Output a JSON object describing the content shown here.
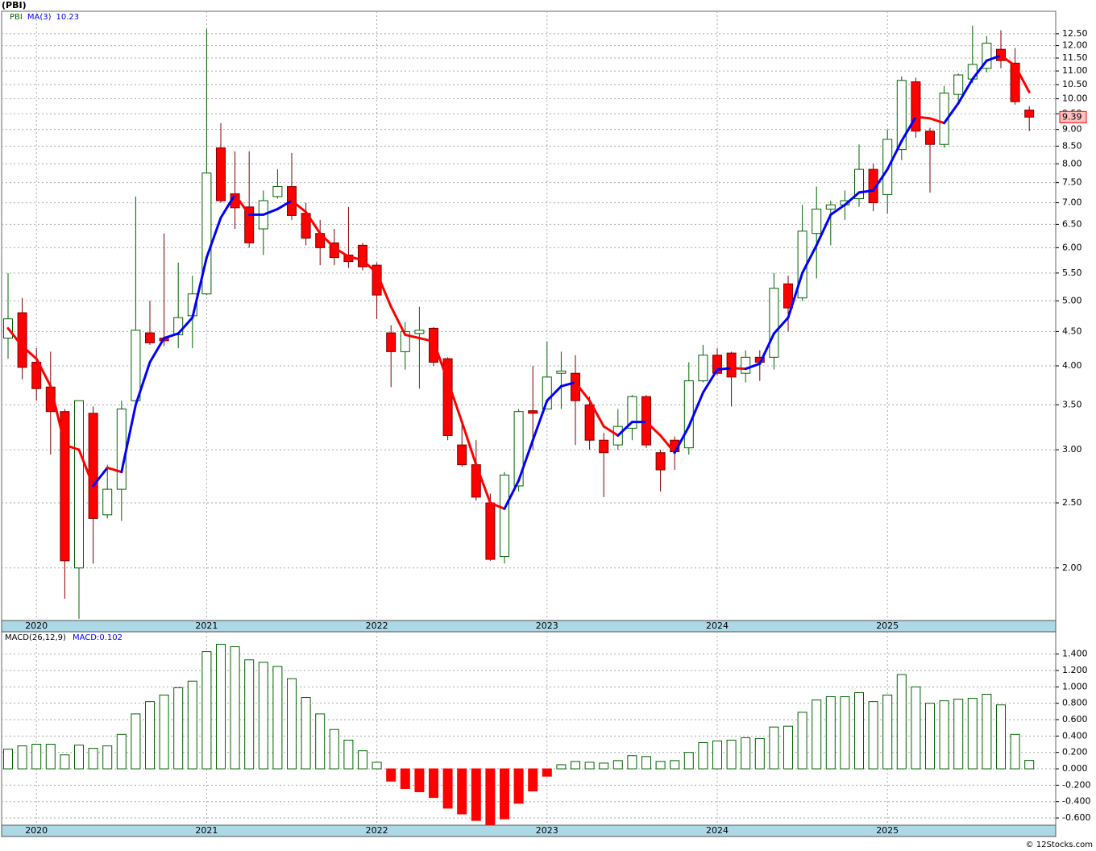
{
  "title": "(PBI)",
  "footer": "© 12Stocks.com",
  "chart_data": [
    {
      "type": "candlestick",
      "log_scale": true,
      "grid": true,
      "ylim": [
        1.67,
        13.5
      ],
      "yticks": [
        {
          "value": 2,
          "label": "2.00"
        },
        {
          "value": 2.5,
          "label": "2.50"
        },
        {
          "value": 3,
          "label": "3.00"
        },
        {
          "value": 3.5,
          "label": "3.50"
        },
        {
          "value": 4,
          "label": "4.00"
        },
        {
          "value": 4.5,
          "label": "4.50"
        },
        {
          "value": 5,
          "label": "5.00"
        },
        {
          "value": 5.5,
          "label": "5.50"
        },
        {
          "value": 6,
          "label": "6.00"
        },
        {
          "value": 6.5,
          "label": "6.50"
        },
        {
          "value": 7,
          "label": "7.00"
        },
        {
          "value": 7.5,
          "label": "7.50"
        },
        {
          "value": 8,
          "label": "8.00"
        },
        {
          "value": 8.5,
          "label": "8.50"
        },
        {
          "value": 9,
          "label": "9.00"
        },
        {
          "value": 9.5,
          "label": "9.50"
        },
        {
          "value": 10,
          "label": "10.00"
        },
        {
          "value": 10.5,
          "label": "10.50"
        },
        {
          "value": 11,
          "label": "11.00"
        },
        {
          "value": 11.5,
          "label": "11.50"
        },
        {
          "value": 12,
          "label": "12.00"
        },
        {
          "value": 12.5,
          "label": "12.50"
        }
      ],
      "xticks": [
        {
          "value": 2,
          "label": "2020"
        },
        {
          "value": 14,
          "label": "2021"
        },
        {
          "value": 26,
          "label": "2022"
        },
        {
          "value": 38,
          "label": "2023"
        },
        {
          "value": 50,
          "label": "2024"
        },
        {
          "value": 62,
          "label": "2025"
        }
      ],
      "series": [
        {
          "name": "PBI",
          "up_color": "#006400",
          "down_color": "#ff0000",
          "open": [
            4.4,
            4.8,
            4.05,
            3.72,
            3.42,
            2.0,
            3.4,
            2.4,
            2.62,
            3.55,
            4.48,
            4.4,
            4.45,
            4.75,
            5.12,
            8.45,
            7.22,
            6.9,
            6.4,
            7.15,
            7.4,
            6.75,
            6.3,
            6.1,
            5.85,
            6.05,
            5.65,
            4.48,
            4.2,
            4.47,
            4.55,
            4.1,
            3.05,
            2.85,
            2.5,
            2.08,
            2.65,
            3.43,
            3.45,
            3.9,
            3.9,
            3.5,
            3.1,
            3.05,
            3.23,
            3.6,
            2.97,
            3.1,
            3.02,
            3.8,
            4.15,
            4.18,
            3.9,
            4.12,
            4.12,
            5.3,
            5.05,
            6.3,
            6.85,
            6.95,
            7.1,
            7.85,
            7.2,
            8.4,
            10.6,
            8.95,
            8.55,
            10.15,
            10.7,
            11.1,
            11.85,
            11.3,
            9.62
          ],
          "high": [
            5.5,
            5.05,
            4.25,
            4.2,
            3.45,
            3.55,
            3.48,
            2.85,
            3.55,
            7.15,
            5.0,
            6.3,
            5.7,
            5.45,
            12.7,
            9.2,
            8.35,
            8.35,
            7.3,
            7.85,
            8.3,
            7.0,
            6.6,
            6.4,
            6.9,
            6.1,
            5.7,
            4.6,
            4.65,
            4.9,
            4.57,
            4.12,
            3.3,
            3.1,
            2.58,
            2.78,
            3.45,
            4.0,
            4.35,
            4.2,
            4.15,
            3.6,
            3.18,
            3.45,
            3.62,
            3.62,
            3.0,
            3.14,
            4.05,
            4.3,
            4.25,
            4.2,
            4.22,
            4.22,
            5.5,
            5.45,
            6.95,
            7.4,
            7.05,
            7.3,
            8.55,
            8.0,
            9.0,
            10.8,
            10.75,
            9.05,
            10.45,
            10.9,
            12.85,
            12.4,
            12.65,
            11.9,
            9.75
          ],
          "low": [
            4.1,
            3.82,
            3.55,
            2.95,
            1.8,
            1.68,
            2.03,
            2.37,
            2.35,
            3.5,
            4.3,
            4.28,
            4.25,
            4.25,
            5.1,
            7.0,
            6.4,
            6.0,
            5.85,
            7.1,
            6.6,
            6.05,
            5.65,
            5.65,
            5.6,
            5.55,
            4.7,
            3.72,
            3.95,
            3.7,
            4.0,
            3.1,
            2.83,
            2.52,
            2.05,
            2.03,
            2.6,
            3.0,
            3.45,
            3.45,
            3.05,
            3.0,
            2.55,
            3.0,
            3.1,
            3.02,
            2.6,
            2.8,
            2.95,
            3.78,
            3.87,
            3.48,
            3.78,
            3.8,
            3.95,
            4.5,
            5.0,
            5.4,
            6.05,
            6.6,
            6.9,
            6.8,
            6.75,
            8.1,
            8.75,
            7.25,
            8.45,
            9.9,
            10.55,
            10.95,
            11.1,
            9.8,
            8.95
          ],
          "close": [
            4.7,
            3.98,
            3.7,
            3.42,
            2.05,
            3.55,
            2.37,
            2.62,
            3.45,
            4.52,
            4.33,
            4.36,
            4.72,
            5.12,
            7.75,
            7.05,
            6.88,
            6.1,
            7.05,
            7.4,
            6.7,
            6.2,
            6.0,
            5.8,
            5.72,
            5.62,
            5.1,
            4.2,
            4.5,
            4.52,
            4.05,
            3.15,
            2.85,
            2.55,
            2.06,
            2.75,
            3.42,
            3.4,
            3.85,
            3.93,
            3.55,
            3.1,
            2.97,
            3.25,
            3.6,
            3.05,
            2.8,
            2.98,
            3.8,
            4.15,
            3.9,
            3.85,
            4.12,
            4.05,
            5.22,
            4.88,
            6.35,
            6.85,
            6.95,
            7.05,
            7.85,
            7.0,
            8.7,
            10.65,
            8.95,
            8.55,
            10.2,
            10.85,
            11.25,
            12.1,
            11.4,
            9.9,
            9.39
          ]
        },
        {
          "name": "MA(3)",
          "up_color": "#0000ff",
          "down_color": "#ff0000",
          "values": [
            4.55,
            4.28,
            4.1,
            3.73,
            3.05,
            3.0,
            2.65,
            2.82,
            2.78,
            3.5,
            4.05,
            4.4,
            4.47,
            4.72,
            5.8,
            6.65,
            7.2,
            6.72,
            6.72,
            6.85,
            7.05,
            6.78,
            6.3,
            6.0,
            5.82,
            5.75,
            5.5,
            4.9,
            4.45,
            4.4,
            4.35,
            3.8,
            3.3,
            2.85,
            2.5,
            2.45,
            2.7,
            3.1,
            3.55,
            3.73,
            3.78,
            3.55,
            3.25,
            3.15,
            3.3,
            3.3,
            3.15,
            2.97,
            3.25,
            3.65,
            3.95,
            3.97,
            3.96,
            4.03,
            4.47,
            4.72,
            5.5,
            6.05,
            6.72,
            6.95,
            7.25,
            7.3,
            7.85,
            8.65,
            9.4,
            9.35,
            9.2,
            9.85,
            10.7,
            11.4,
            11.6,
            11.2,
            10.23
          ]
        }
      ]
    },
    {
      "type": "bar",
      "name": "MACD(26,12,9)",
      "value_prefix": "MACD:",
      "grid": true,
      "up_color": "#006400",
      "down_color": "#ff0000",
      "ylim": [
        -0.688,
        1.672
      ],
      "yticks": [
        {
          "value": -0.6,
          "label": "-0.600"
        },
        {
          "value": -0.4,
          "label": "-0.400"
        },
        {
          "value": -0.2,
          "label": "-0.200"
        },
        {
          "value": 0,
          "label": "0.000"
        },
        {
          "value": 0.2,
          "label": "0.200"
        },
        {
          "value": 0.4,
          "label": "0.400"
        },
        {
          "value": 0.6,
          "label": "0.600"
        },
        {
          "value": 0.8,
          "label": "0.800"
        },
        {
          "value": 1,
          "label": "1.000"
        },
        {
          "value": 1.2,
          "label": "1.200"
        },
        {
          "value": 1.4,
          "label": "1.400"
        }
      ],
      "xticks": [
        {
          "value": 2,
          "label": "2020"
        },
        {
          "value": 14,
          "label": "2021"
        },
        {
          "value": 26,
          "label": "2022"
        },
        {
          "value": 38,
          "label": "2023"
        },
        {
          "value": 50,
          "label": "2024"
        },
        {
          "value": 62,
          "label": "2025"
        }
      ],
      "values": [
        0.24,
        0.28,
        0.3,
        0.3,
        0.17,
        0.29,
        0.25,
        0.28,
        0.42,
        0.67,
        0.82,
        0.9,
        0.99,
        1.07,
        1.43,
        1.52,
        1.49,
        1.33,
        1.3,
        1.25,
        1.1,
        0.87,
        0.67,
        0.48,
        0.35,
        0.22,
        0.08,
        -0.15,
        -0.24,
        -0.28,
        -0.35,
        -0.48,
        -0.55,
        -0.63,
        -0.68,
        -0.61,
        -0.42,
        -0.27,
        -0.09,
        0.05,
        0.09,
        0.08,
        0.07,
        0.1,
        0.16,
        0.15,
        0.09,
        0.1,
        0.2,
        0.32,
        0.34,
        0.35,
        0.38,
        0.37,
        0.51,
        0.52,
        0.69,
        0.84,
        0.88,
        0.88,
        0.93,
        0.82,
        0.9,
        1.15,
        1.0,
        0.8,
        0.83,
        0.85,
        0.86,
        0.91,
        0.78,
        0.42,
        0.102
      ]
    }
  ]
}
